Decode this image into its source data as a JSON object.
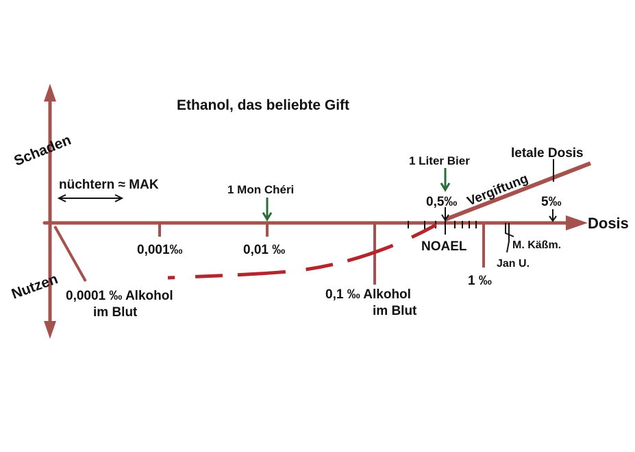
{
  "title": "Ethanol, das beliebte Gift",
  "axes": {
    "y_up": "Schaden",
    "y_down": "Nutzen",
    "x": "Dosis"
  },
  "annotations": {
    "sober": "nüchtern ≈ MAK",
    "mon_cheri": "1 Mon Chéri",
    "beer": "1 Liter Bier",
    "lethal": "letale Dosis",
    "poisoning": "Vergiftung",
    "half_permille": "0,5‰",
    "five_permille": "5‰",
    "noael": "NOAEL",
    "kaessm": "M. Käßm.",
    "jan": "Jan U."
  },
  "ticks": {
    "t0001": [
      "0,0001 ‰ Alkohol",
      "im Blut"
    ],
    "t001": "0,001‰",
    "t01": "0,01 ‰",
    "t1": [
      "0,1 ‰ Alkohol",
      "im Blut"
    ],
    "t10": "1 ‰"
  }
}
